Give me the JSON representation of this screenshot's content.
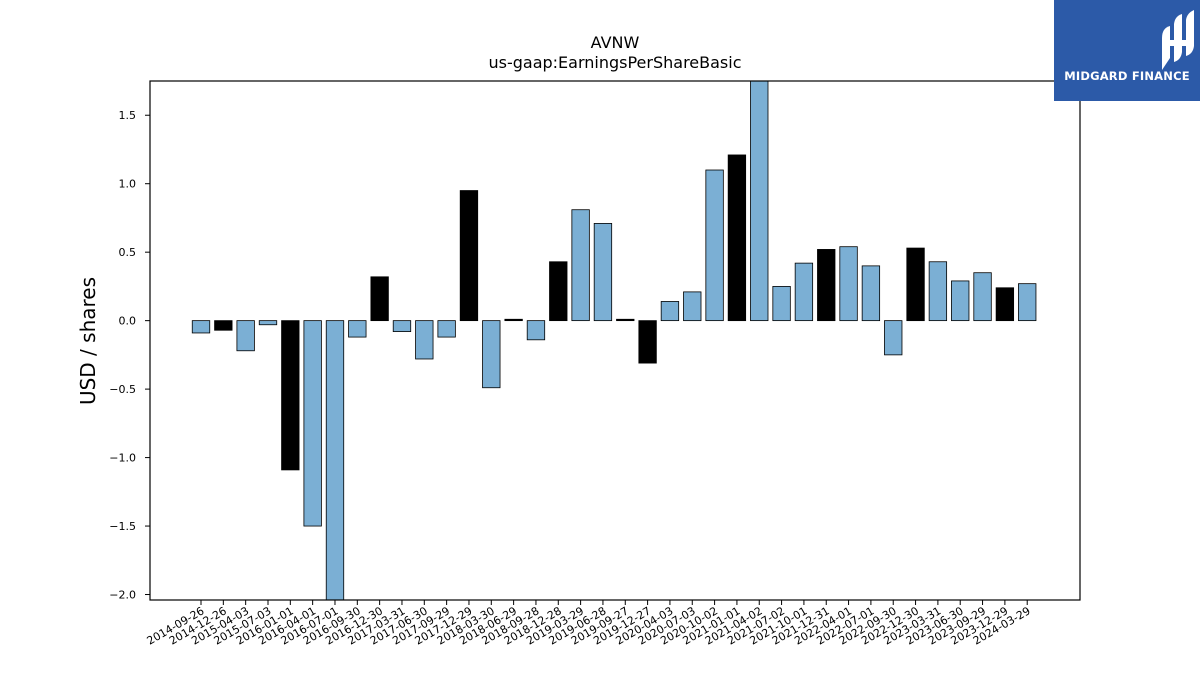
{
  "chart_data": {
    "type": "bar",
    "title": "AVNW",
    "subtitle": "us-gaap:EarningsPerShareBasic",
    "xlabel": "",
    "ylabel": "USD / shares",
    "ylim": [
      -2.04,
      1.75
    ],
    "yticks": [
      -2.0,
      -1.5,
      -1.0,
      -0.5,
      0.0,
      0.5,
      1.0,
      1.5
    ],
    "grid": false,
    "colors": {
      "quarterly": "#7bafd4",
      "annual": "#000000",
      "edge": "#000000"
    },
    "categories": [
      "2014-09-26",
      "2014-12-26",
      "2015-04-03",
      "2015-07-03",
      "2016-01-01",
      "2016-04-01",
      "2016-07-01",
      "2016-09-30",
      "2016-12-30",
      "2017-03-31",
      "2017-06-30",
      "2017-09-29",
      "2017-12-29",
      "2018-03-30",
      "2018-06-29",
      "2018-09-28",
      "2018-12-28",
      "2019-03-29",
      "2019-06-28",
      "2019-09-27",
      "2019-12-27",
      "2020-04-03",
      "2020-07-03",
      "2020-10-02",
      "2021-01-01",
      "2021-04-02",
      "2021-07-02",
      "2021-10-01",
      "2021-12-31",
      "2022-04-01",
      "2022-07-01",
      "2022-09-30",
      "2022-12-30",
      "2023-03-31",
      "2023-06-30",
      "2023-09-29",
      "2023-12-29",
      "2024-03-29"
    ],
    "values": [
      -0.09,
      -0.07,
      -0.22,
      -0.03,
      -1.09,
      -1.5,
      -2.05,
      -0.12,
      0.32,
      -0.08,
      -0.28,
      -0.12,
      0.95,
      -0.49,
      0.01,
      -0.14,
      0.43,
      0.81,
      0.71,
      0.01,
      -0.31,
      0.14,
      0.21,
      1.1,
      1.21,
      1.8,
      0.25,
      0.42,
      0.52,
      0.54,
      0.4,
      -0.25,
      0.53,
      0.43,
      0.29,
      0.35,
      0.24,
      0.27
    ],
    "annual": [
      false,
      true,
      false,
      false,
      true,
      false,
      false,
      false,
      true,
      false,
      false,
      false,
      true,
      false,
      true,
      false,
      true,
      false,
      false,
      true,
      true,
      false,
      false,
      false,
      true,
      false,
      false,
      false,
      true,
      false,
      false,
      false,
      true,
      false,
      false,
      false,
      true,
      false
    ]
  },
  "logo": {
    "text": "MIDGARD FINANCE"
  }
}
